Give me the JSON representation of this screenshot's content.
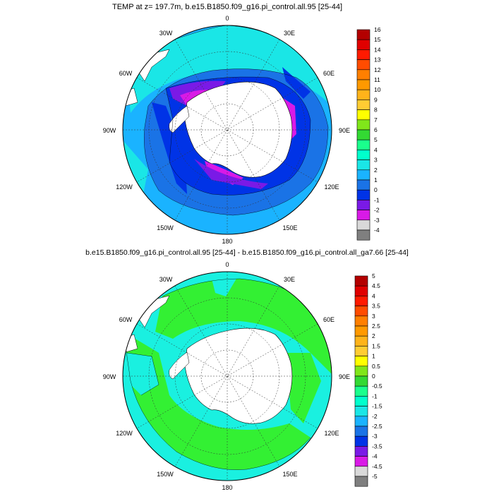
{
  "top_panel": {
    "title": "TEMP at z= 197.7m, b.e15.B1850.f09_g16.pi_control.all.95 [25-44]",
    "meridian_labels": [
      "0",
      "30E",
      "60E",
      "90E",
      "120E",
      "150E",
      "180",
      "150W",
      "120W",
      "90W",
      "60W",
      "30W"
    ],
    "colorbar": {
      "labels": [
        "16",
        "15",
        "14",
        "13",
        "12",
        "11",
        "10",
        "9",
        "8",
        "7",
        "6",
        "5",
        "4",
        "3",
        "2",
        "1",
        "0",
        "-1",
        "-2",
        "-3",
        "-4"
      ],
      "colors": [
        "#b30000",
        "#e00000",
        "#ff1a00",
        "#ff4c00",
        "#ff7f00",
        "#ff9900",
        "#ffb31a",
        "#ffcc33",
        "#ffff00",
        "#80e61a",
        "#33d933",
        "#1aff8c",
        "#00ffcc",
        "#1ae6e6",
        "#1ab3ff",
        "#1a73e6",
        "#0033e6",
        "#7a1ae6",
        "#d91ae6",
        "#d9d9d9",
        "#7f7f7f"
      ]
    }
  },
  "bottom_panel": {
    "title": "b.e15.B1850.f09_g16.pi_control.all.95 [25-44] - b.e15.B1850.f09_g16.pi_control.all_ga7.66 [25-44]",
    "meridian_labels": [
      "0",
      "30E",
      "60E",
      "90E",
      "120E",
      "150E",
      "180",
      "150W",
      "120W",
      "90W",
      "60W",
      "30W"
    ],
    "colorbar": {
      "labels": [
        "5",
        "4.5",
        "4",
        "3.5",
        "3",
        "2.5",
        "2",
        "1.5",
        "1",
        "0.5",
        "0",
        "-0.5",
        "-1",
        "-1.5",
        "-2",
        "-2.5",
        "-3",
        "-3.5",
        "-4",
        "-4.5",
        "-5"
      ],
      "colors": [
        "#b30000",
        "#e00000",
        "#ff1a00",
        "#ff4c00",
        "#ff7f00",
        "#ff9900",
        "#ffb31a",
        "#ffcc33",
        "#ffff00",
        "#80e61a",
        "#33d933",
        "#1aff8c",
        "#00ffcc",
        "#1ae6e6",
        "#1ab3ff",
        "#1a73e6",
        "#0033e6",
        "#7a1ae6",
        "#d91ae6",
        "#d9d9d9",
        "#7f7f7f"
      ]
    }
  },
  "map_colors": {
    "ocean_deep": "#1a73e6",
    "ocean_mid": "#1ab3ff",
    "ocean_warm": "#1ae6e6",
    "ocean_cold": "#0033e6",
    "ocean_violet": "#7a1ae6",
    "ocean_magenta": "#d91ae6",
    "diff_green": "#33f033",
    "diff_cyan": "#1af0e0",
    "land": "#ffffff"
  }
}
